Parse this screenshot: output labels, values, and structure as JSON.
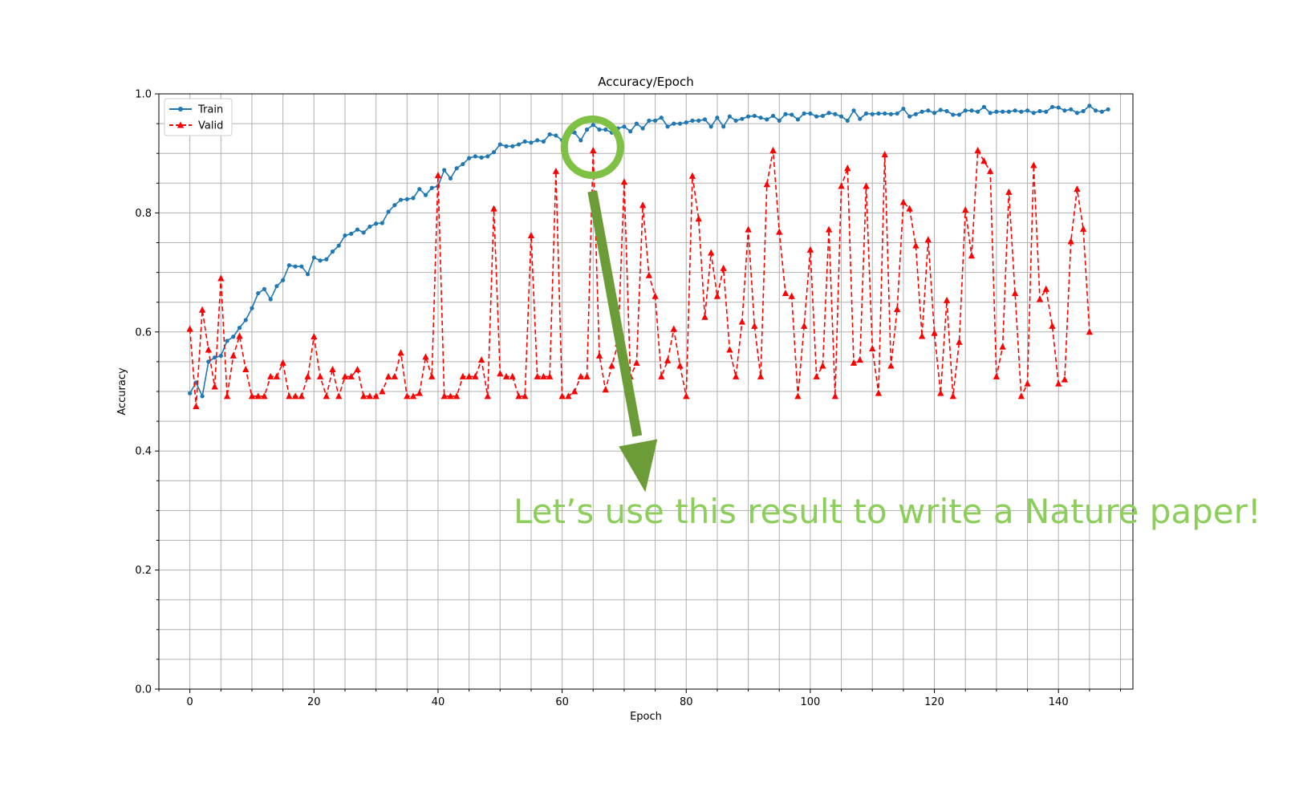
{
  "chart_data": {
    "type": "line",
    "title": "Accuracy/Epoch",
    "xlabel": "Epoch",
    "ylabel": "Accuracy",
    "xlim": [
      -5,
      152
    ],
    "ylim": [
      0.0,
      1.0
    ],
    "x_ticks": [
      0,
      20,
      40,
      60,
      80,
      100,
      120,
      140
    ],
    "x_tick_labels": [
      "0",
      "20",
      "40",
      "60",
      "80",
      "100",
      "120",
      "140"
    ],
    "y_ticks": [
      0.0,
      0.2,
      0.4,
      0.6,
      0.8,
      1.0
    ],
    "y_tick_labels": [
      "0.0",
      "0.2",
      "0.4",
      "0.6",
      "0.8",
      "1.0"
    ],
    "grid": true,
    "legend_position": "top-left",
    "series": [
      {
        "name": "Train",
        "color": "#1f77b4",
        "style": "solid",
        "marker": "circle",
        "x_start": 0,
        "values": [
          0.497,
          0.515,
          0.492,
          0.55,
          0.557,
          0.56,
          0.585,
          0.592,
          0.607,
          0.62,
          0.64,
          0.665,
          0.672,
          0.655,
          0.677,
          0.687,
          0.712,
          0.71,
          0.71,
          0.697,
          0.725,
          0.72,
          0.722,
          0.735,
          0.745,
          0.762,
          0.765,
          0.772,
          0.767,
          0.777,
          0.782,
          0.783,
          0.802,
          0.813,
          0.822,
          0.823,
          0.825,
          0.84,
          0.83,
          0.842,
          0.845,
          0.872,
          0.858,
          0.875,
          0.882,
          0.892,
          0.895,
          0.893,
          0.895,
          0.902,
          0.915,
          0.912,
          0.912,
          0.915,
          0.92,
          0.918,
          0.922,
          0.92,
          0.932,
          0.93,
          0.922,
          0.932,
          0.935,
          0.922,
          0.94,
          0.948,
          0.94,
          0.94,
          0.935,
          0.942,
          0.945,
          0.937,
          0.95,
          0.942,
          0.955,
          0.955,
          0.96,
          0.945,
          0.95,
          0.95,
          0.952,
          0.955,
          0.955,
          0.957,
          0.945,
          0.96,
          0.945,
          0.962,
          0.955,
          0.958,
          0.962,
          0.963,
          0.96,
          0.957,
          0.963,
          0.955,
          0.966,
          0.965,
          0.957,
          0.967,
          0.967,
          0.962,
          0.963,
          0.968,
          0.966,
          0.962,
          0.955,
          0.972,
          0.958,
          0.967,
          0.966,
          0.967,
          0.967,
          0.966,
          0.967,
          0.975,
          0.962,
          0.966,
          0.97,
          0.972,
          0.968,
          0.973,
          0.971,
          0.965,
          0.965,
          0.972,
          0.972,
          0.97,
          0.978,
          0.968,
          0.97,
          0.97,
          0.97,
          0.972,
          0.97,
          0.972,
          0.968,
          0.971,
          0.97,
          0.978,
          0.977,
          0.972,
          0.974,
          0.968,
          0.971,
          0.98,
          0.972,
          0.97,
          0.974
        ]
      },
      {
        "name": "Valid",
        "color": "#ff0000",
        "style": "dashed",
        "marker": "triangle",
        "x_start": 0,
        "values": [
          0.605,
          0.475,
          0.637,
          0.57,
          0.508,
          0.69,
          0.492,
          0.56,
          0.593,
          0.537,
          0.492,
          0.492,
          0.492,
          0.525,
          0.525,
          0.548,
          0.492,
          0.492,
          0.492,
          0.525,
          0.592,
          0.525,
          0.492,
          0.537,
          0.492,
          0.525,
          0.525,
          0.537,
          0.492,
          0.492,
          0.492,
          0.5,
          0.525,
          0.525,
          0.565,
          0.492,
          0.492,
          0.497,
          0.558,
          0.525,
          0.863,
          0.492,
          0.492,
          0.492,
          0.525,
          0.525,
          0.525,
          0.553,
          0.492,
          0.807,
          0.53,
          0.525,
          0.525,
          0.492,
          0.492,
          0.762,
          0.525,
          0.525,
          0.525,
          0.87,
          0.492,
          0.492,
          0.5,
          0.525,
          0.525,
          0.905,
          0.56,
          0.503,
          0.543,
          0.58,
          0.852,
          0.525,
          0.548,
          0.813,
          0.695,
          0.66,
          0.525,
          0.552,
          0.605,
          0.543,
          0.492,
          0.862,
          0.79,
          0.625,
          0.733,
          0.66,
          0.707,
          0.57,
          0.525,
          0.617,
          0.772,
          0.61,
          0.525,
          0.848,
          0.905,
          0.768,
          0.665,
          0.66,
          0.492,
          0.61,
          0.738,
          0.525,
          0.543,
          0.772,
          0.492,
          0.845,
          0.875,
          0.548,
          0.553,
          0.845,
          0.572,
          0.497,
          0.898,
          0.543,
          0.638,
          0.818,
          0.807,
          0.745,
          0.593,
          0.755,
          0.598,
          0.497,
          0.653,
          0.492,
          0.583,
          0.805,
          0.728,
          0.905,
          0.887,
          0.87,
          0.525,
          0.575,
          0.835,
          0.665,
          0.492,
          0.513,
          0.88,
          0.655,
          0.672,
          0.61,
          0.513,
          0.52,
          0.752,
          0.84,
          0.773,
          0.6
        ]
      }
    ],
    "annotation": {
      "text": "Let’s use this result to write a Nature paper!",
      "color": "#8cce5a",
      "circle_color": "#7ec145",
      "arrow_color": "#6b9c37",
      "target_epoch": 65,
      "target_accuracy": 0.905
    }
  }
}
